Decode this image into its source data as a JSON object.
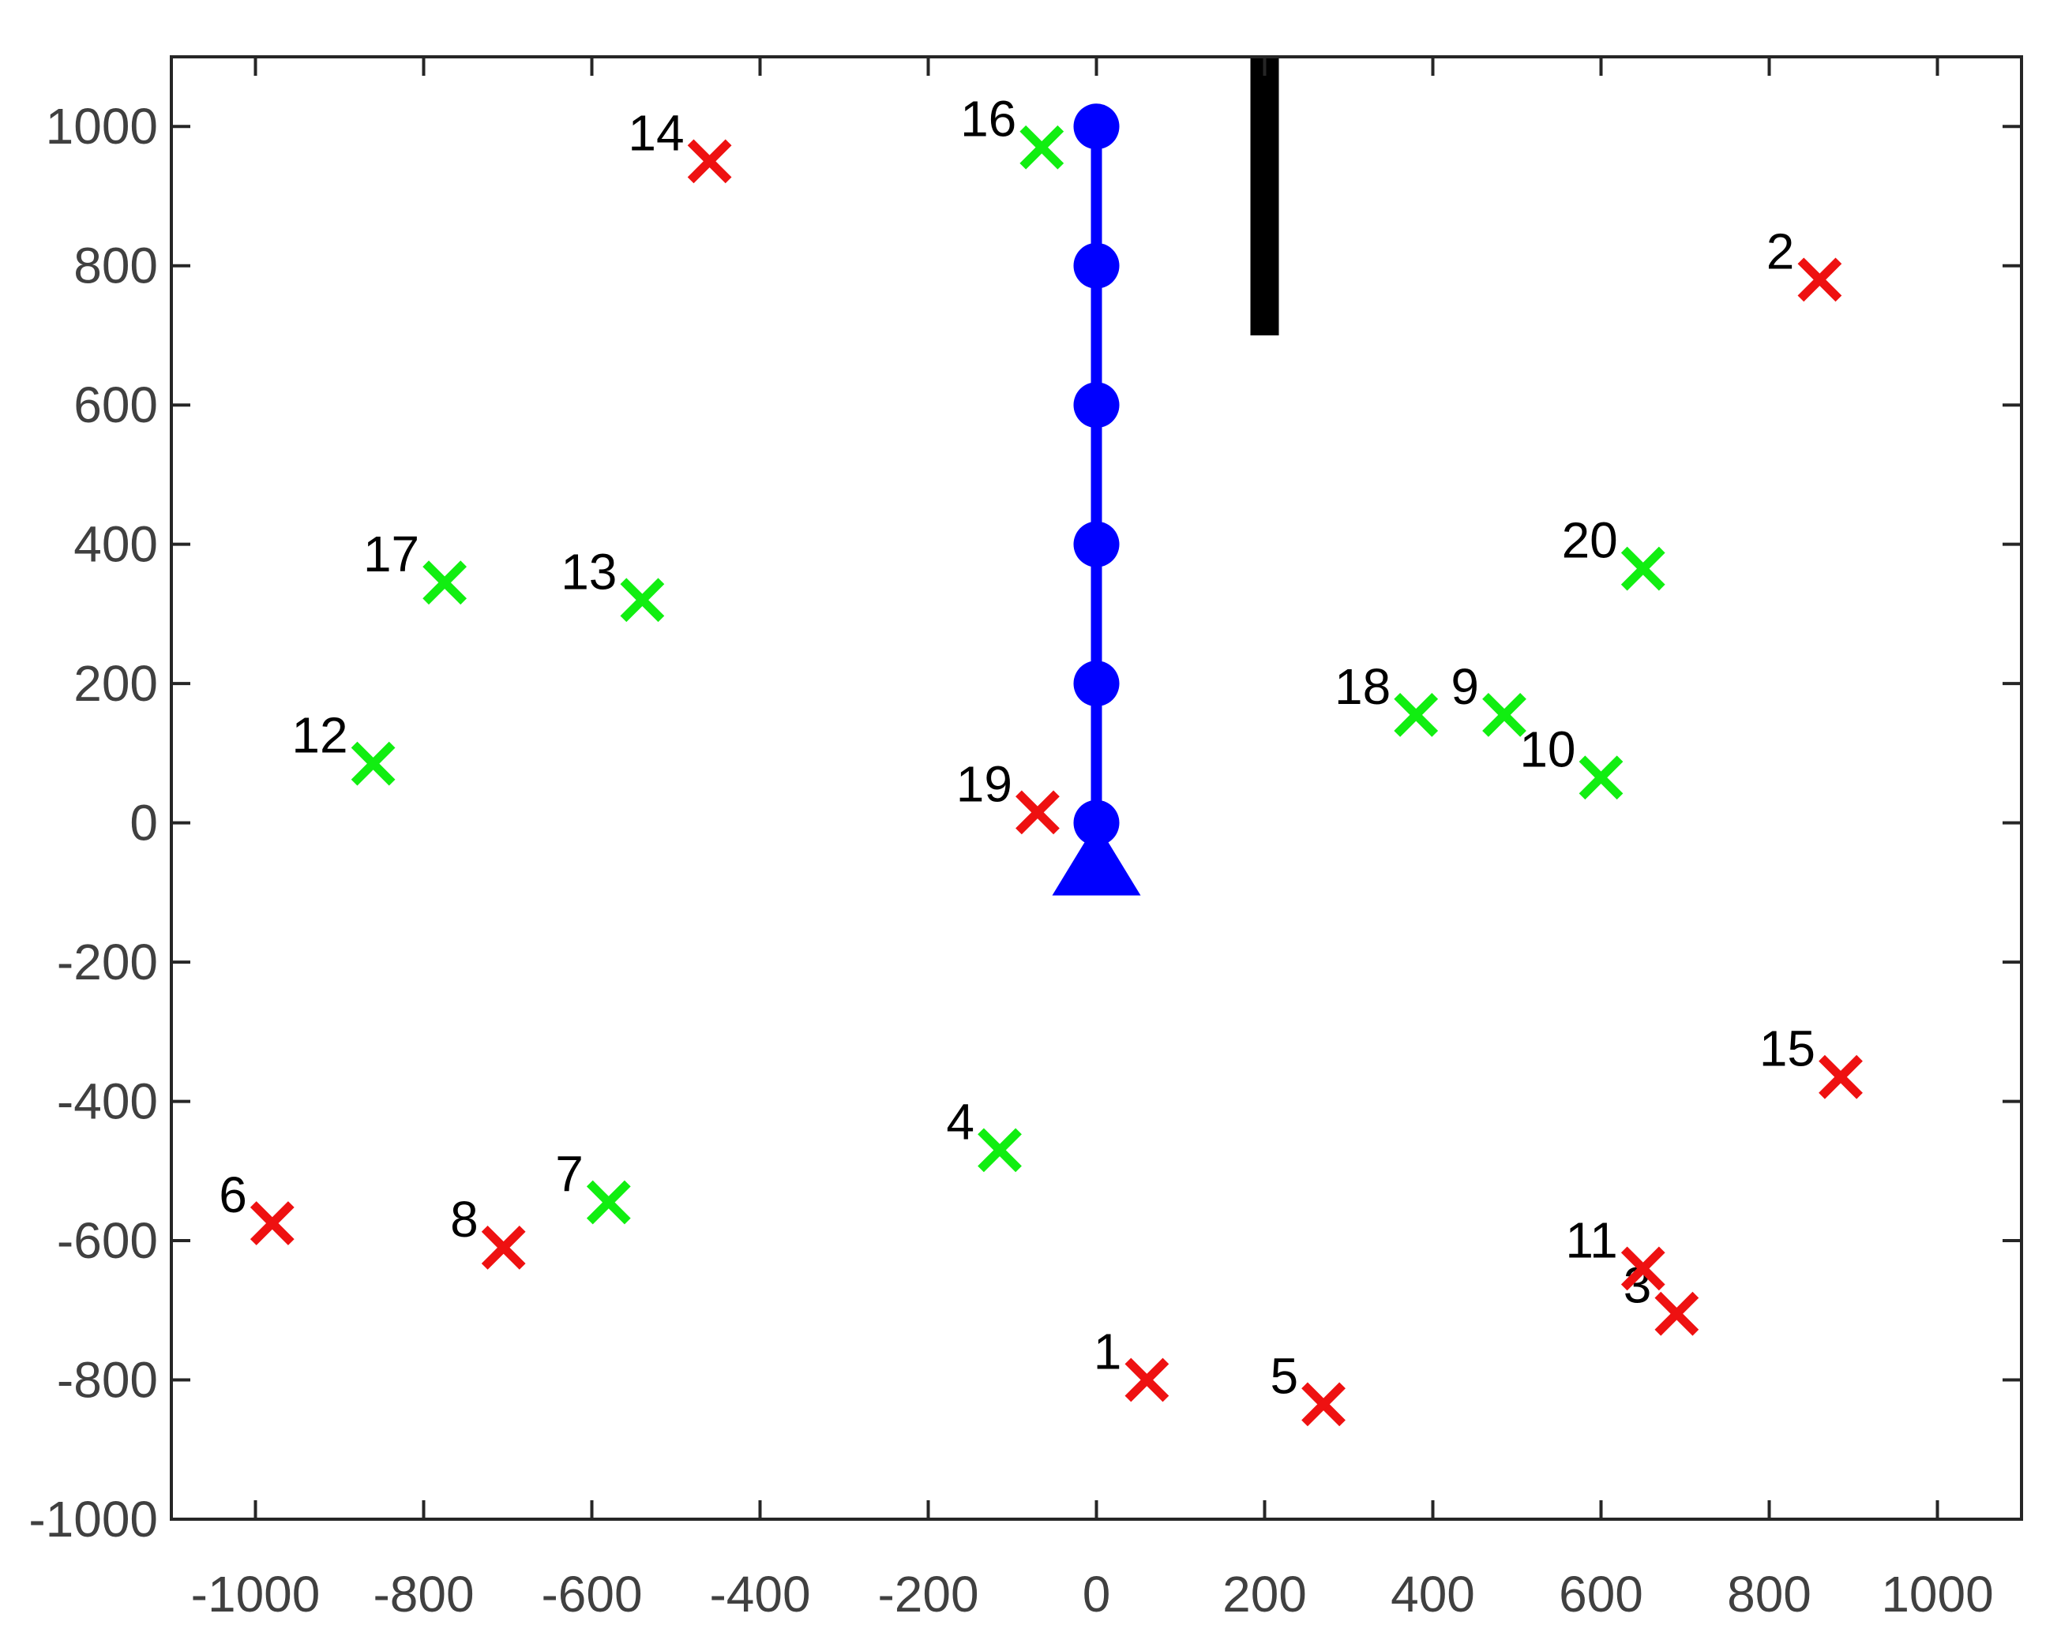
{
  "chart_data": {
    "type": "scatter",
    "title": "",
    "xlabel": "",
    "ylabel": "",
    "xlim": [
      -1100,
      1100
    ],
    "ylim": [
      -1000,
      1100
    ],
    "x_ticks": [
      -1000,
      -800,
      -600,
      -400,
      -200,
      0,
      200,
      400,
      600,
      800,
      1000
    ],
    "y_ticks": [
      -1000,
      -800,
      -600,
      -400,
      -200,
      0,
      200,
      400,
      600,
      800,
      1000
    ],
    "x_tick_labels": [
      "-1000",
      "-800",
      "-600",
      "-400",
      "-200",
      "0",
      "200",
      "400",
      "600",
      "800",
      "1000"
    ],
    "y_tick_labels": [
      "-1000",
      "-800",
      "-600",
      "-400",
      "-200",
      "0",
      "200",
      "400",
      "600",
      "800",
      "1000"
    ],
    "grid": false,
    "legend": "none",
    "colors": {
      "red_marker": "#ee1111",
      "green_marker": "#11ee11",
      "arm": "#0000ff",
      "obstacle": "#000000",
      "axis": "#262626"
    },
    "manipulator": {
      "base": {
        "x": 0,
        "y": -70
      },
      "joints": [
        {
          "x": 0,
          "y": 0
        },
        {
          "x": 0,
          "y": 200
        },
        {
          "x": 0,
          "y": 400
        },
        {
          "x": 0,
          "y": 600
        },
        {
          "x": 0,
          "y": 800
        },
        {
          "x": 0,
          "y": 1000
        }
      ]
    },
    "obstacle": {
      "x": 200,
      "y_from": 700,
      "y_to": 1100
    },
    "targets": [
      {
        "label": "1",
        "x": 60,
        "y": -800,
        "color": "red"
      },
      {
        "label": "2",
        "x": 860,
        "y": 780,
        "color": "red"
      },
      {
        "label": "3",
        "x": 690,
        "y": -705,
        "color": "red"
      },
      {
        "label": "4",
        "x": -115,
        "y": -470,
        "color": "green"
      },
      {
        "label": "5",
        "x": 270,
        "y": -835,
        "color": "red"
      },
      {
        "label": "6",
        "x": -980,
        "y": -575,
        "color": "red"
      },
      {
        "label": "7",
        "x": -580,
        "y": -545,
        "color": "green"
      },
      {
        "label": "8",
        "x": -705,
        "y": -610,
        "color": "red"
      },
      {
        "label": "9",
        "x": 485,
        "y": 155,
        "color": "green"
      },
      {
        "label": "10",
        "x": 600,
        "y": 65,
        "color": "green"
      },
      {
        "label": "11",
        "x": 650,
        "y": -640,
        "color": "red"
      },
      {
        "label": "12",
        "x": -860,
        "y": 85,
        "color": "green"
      },
      {
        "label": "13",
        "x": -540,
        "y": 320,
        "color": "green"
      },
      {
        "label": "14",
        "x": -460,
        "y": 950,
        "color": "red"
      },
      {
        "label": "15",
        "x": 885,
        "y": -365,
        "color": "red"
      },
      {
        "label": "16",
        "x": -65,
        "y": 970,
        "color": "green"
      },
      {
        "label": "17",
        "x": -775,
        "y": 345,
        "color": "green"
      },
      {
        "label": "18",
        "x": 380,
        "y": 155,
        "color": "green"
      },
      {
        "label": "19",
        "x": -70,
        "y": 15,
        "color": "red"
      },
      {
        "label": "20",
        "x": 650,
        "y": 365,
        "color": "green"
      }
    ]
  }
}
